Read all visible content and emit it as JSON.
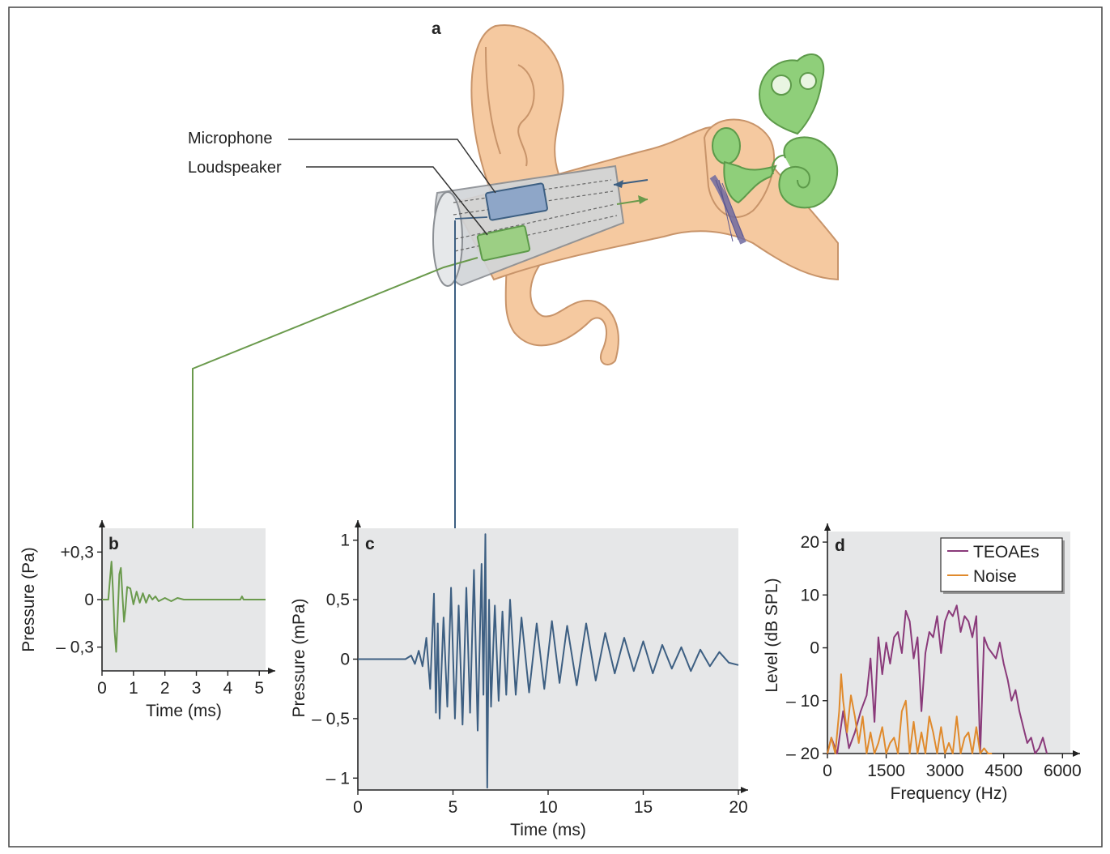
{
  "labels": {
    "panel_a": "a",
    "microphone": "Microphone",
    "loudspeaker": "Loudspeaker"
  },
  "colors": {
    "skin": "#f5c9a0",
    "skin_stroke": "#c8946a",
    "inner_ear": "#8fcf7a",
    "probe": "#d2d5d8",
    "mic": "#8ea6c8",
    "speaker": "#9ccf84",
    "green_trace": "#6a9a4c",
    "blue_trace": "#3d5f82",
    "teoae": "#8a3a7a",
    "noise": "#e08a2c",
    "panel_bg": "#e6e7e8"
  },
  "chart_data": [
    {
      "panel": "b",
      "type": "line",
      "xlabel": "Time (ms)",
      "ylabel": "Pressure (Pa)",
      "xlim": [
        0,
        5.2
      ],
      "ylim": [
        -0.45,
        0.45
      ],
      "xticks": [
        "0",
        "1",
        "2",
        "3",
        "4",
        "5"
      ],
      "xtick_values": [
        0,
        1,
        2,
        3,
        4,
        5
      ],
      "yticks": [
        "+0,3",
        "0",
        "– 0,3"
      ],
      "ytick_values": [
        0.3,
        0,
        -0.3
      ],
      "series": [
        {
          "color": "#6a9a4c",
          "x": [
            0,
            0.2,
            0.25,
            0.3,
            0.35,
            0.4,
            0.45,
            0.5,
            0.55,
            0.6,
            0.65,
            0.7,
            0.75,
            0.8,
            0.9,
            1.0,
            1.1,
            1.2,
            1.3,
            1.4,
            1.5,
            1.6,
            1.7,
            1.8,
            2.0,
            2.2,
            2.4,
            2.6,
            3.0,
            4.4,
            4.45,
            4.5,
            5.0,
            5.2
          ],
          "y": [
            0,
            0,
            0.12,
            0.24,
            0.05,
            -0.2,
            -0.33,
            -0.1,
            0.16,
            0.2,
            0.02,
            -0.14,
            -0.05,
            0.08,
            0.07,
            -0.03,
            0.05,
            -0.02,
            0.04,
            -0.02,
            0.03,
            0.0,
            0.02,
            -0.01,
            0.01,
            -0.01,
            0.01,
            0.0,
            0.0,
            0.0,
            0.02,
            0.0,
            0.0,
            0.0
          ]
        }
      ]
    },
    {
      "panel": "c",
      "type": "line",
      "xlabel": "Time (ms)",
      "ylabel": "Pressure (mPa)",
      "xlim": [
        0,
        20
      ],
      "ylim": [
        -1.1,
        1.1
      ],
      "xticks": [
        "0",
        "5",
        "10",
        "15",
        "20"
      ],
      "xtick_values": [
        0,
        5,
        10,
        15,
        20
      ],
      "yticks": [
        "1",
        "0,5",
        "0",
        "– 0,5",
        "– 1"
      ],
      "ytick_values": [
        1,
        0.5,
        0,
        -0.5,
        -1
      ],
      "series": [
        {
          "color": "#3d5f82",
          "x": [
            0,
            2.5,
            2.8,
            3.0,
            3.2,
            3.4,
            3.6,
            3.8,
            4.0,
            4.1,
            4.2,
            4.3,
            4.5,
            4.7,
            4.9,
            5.1,
            5.3,
            5.5,
            5.7,
            5.9,
            6.1,
            6.3,
            6.5,
            6.6,
            6.7,
            6.8,
            6.9,
            7.0,
            7.2,
            7.4,
            7.6,
            7.8,
            8.0,
            8.3,
            8.6,
            9.0,
            9.4,
            9.8,
            10.2,
            10.6,
            11.0,
            11.5,
            12.0,
            12.5,
            13.0,
            13.5,
            14.0,
            14.5,
            15.0,
            15.5,
            16.0,
            16.5,
            17.0,
            17.5,
            18.0,
            18.5,
            19.0,
            19.5,
            20.0
          ],
          "y": [
            0,
            0,
            0.03,
            -0.04,
            0.07,
            -0.06,
            0.18,
            -0.25,
            0.55,
            -0.45,
            0.3,
            -0.5,
            0.35,
            -0.4,
            0.6,
            -0.5,
            0.45,
            -0.55,
            0.6,
            -0.45,
            0.75,
            -0.6,
            0.8,
            -0.3,
            1.05,
            -1.08,
            0.5,
            -0.4,
            0.45,
            -0.35,
            0.4,
            -0.3,
            0.5,
            -0.3,
            0.35,
            -0.28,
            0.3,
            -0.25,
            0.32,
            -0.2,
            0.28,
            -0.22,
            0.3,
            -0.18,
            0.22,
            -0.12,
            0.18,
            -0.1,
            0.15,
            -0.12,
            0.12,
            -0.08,
            0.1,
            -0.1,
            0.08,
            -0.06,
            0.06,
            -0.03,
            -0.05
          ]
        }
      ]
    },
    {
      "panel": "d",
      "type": "line",
      "xlabel": "Frequency (Hz)",
      "ylabel": "Level (dB SPL)",
      "xlim": [
        0,
        6200
      ],
      "ylim": [
        -20,
        22
      ],
      "xticks": [
        "0",
        "1500",
        "3000",
        "4500",
        "6000"
      ],
      "xtick_values": [
        0,
        1500,
        3000,
        4500,
        6000
      ],
      "yticks": [
        "20",
        "10",
        "0",
        "– 10",
        "– 20"
      ],
      "ytick_values": [
        20,
        10,
        0,
        -10,
        -20
      ],
      "legend": {
        "position": "top-right"
      },
      "series": [
        {
          "name": "TEOAEs",
          "color": "#8a3a7a",
          "x": [
            0,
            100,
            250,
            400,
            550,
            700,
            850,
            1000,
            1100,
            1200,
            1300,
            1400,
            1500,
            1600,
            1700,
            1800,
            1900,
            2000,
            2100,
            2200,
            2300,
            2400,
            2500,
            2600,
            2700,
            2800,
            2900,
            3000,
            3100,
            3200,
            3300,
            3400,
            3500,
            3600,
            3700,
            3800,
            3900,
            4000,
            4100,
            4200,
            4300,
            4400,
            4500,
            4600,
            4700,
            4800,
            4900,
            5000,
            5100,
            5200,
            5300,
            5400,
            5500,
            5600
          ],
          "y": [
            -20,
            -17,
            -20,
            -12,
            -19,
            -16,
            -12,
            -9,
            -2,
            -14,
            2,
            -5,
            1,
            -3,
            2,
            3,
            -1,
            7,
            5,
            -2,
            2,
            -12,
            -1,
            3,
            2,
            6,
            -1,
            5,
            7,
            6,
            8,
            3,
            6,
            5,
            2,
            6,
            -20,
            2,
            0,
            -1,
            -2,
            1,
            -3,
            -6,
            -10,
            -8,
            -12,
            -15,
            -18,
            -17,
            -20,
            -19,
            -17,
            -20
          ]
        },
        {
          "name": "Noise",
          "color": "#e08a2c",
          "x": [
            0,
            100,
            200,
            300,
            350,
            400,
            500,
            600,
            700,
            800,
            900,
            1000,
            1100,
            1200,
            1300,
            1400,
            1500,
            1600,
            1700,
            1800,
            1900,
            2000,
            2100,
            2200,
            2300,
            2400,
            2500,
            2600,
            2700,
            2800,
            2900,
            3000,
            3100,
            3200,
            3300,
            3400,
            3500,
            3600,
            3700,
            3800,
            3900,
            4000,
            4100,
            4200
          ],
          "y": [
            -20,
            -17,
            -20,
            -12,
            -5,
            -10,
            -16,
            -9,
            -13,
            -18,
            -13,
            -20,
            -16,
            -20,
            -18,
            -15,
            -20,
            -18,
            -17,
            -20,
            -12,
            -10,
            -20,
            -14,
            -20,
            -16,
            -20,
            -13,
            -16,
            -20,
            -15,
            -20,
            -18,
            -20,
            -13,
            -20,
            -17,
            -16,
            -20,
            -15,
            -20,
            -19,
            -20,
            -20
          ]
        }
      ]
    }
  ]
}
